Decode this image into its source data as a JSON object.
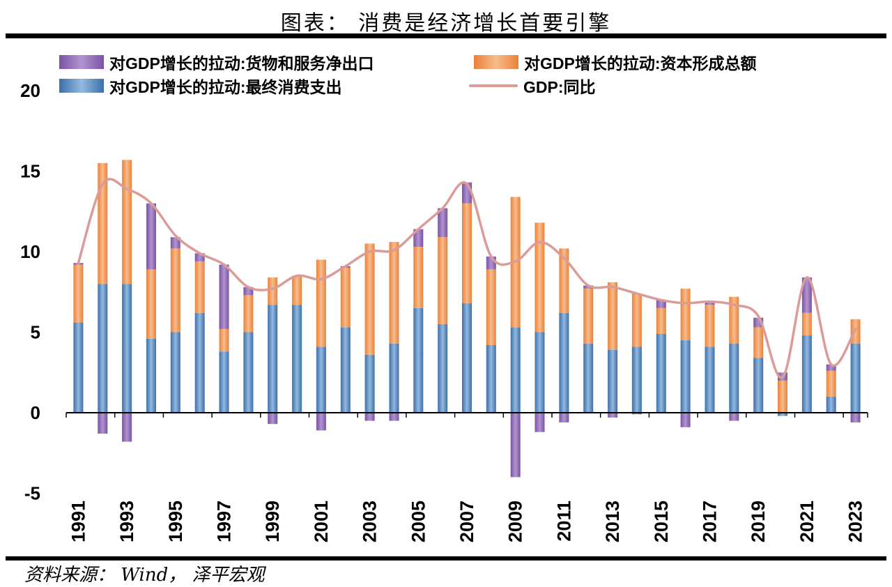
{
  "title": "图表： 消费是经济增长首要引擎",
  "source": "资料来源： Wind， 泽平宏观",
  "legend": {
    "items": [
      {
        "label": "对GDP增长的拉动:货物和服务净出口",
        "type": "bar",
        "color_dark": "#7A52A5",
        "color_light": "#B194CE"
      },
      {
        "label": "对GDP增长的拉动:资本形成总额",
        "type": "bar",
        "color_dark": "#E9813B",
        "color_light": "#F8BC8C"
      },
      {
        "label": "对GDP增长的拉动:最终消费支出",
        "type": "bar",
        "color_dark": "#3C6FAA",
        "color_light": "#93B9DE"
      },
      {
        "label": "GDP:同比",
        "type": "line",
        "color": "#DB9C98"
      }
    ]
  },
  "chart_data": {
    "type": "bar",
    "stacked": true,
    "title": "图表： 消费是经济增长首要引擎",
    "xlabel": "",
    "ylabel": "",
    "ylim": [
      -5,
      20
    ],
    "yticks": [
      20,
      15,
      10,
      5,
      0,
      -5
    ],
    "grid": false,
    "legend_position": "top-left",
    "x": [
      1991,
      1992,
      1993,
      1994,
      1995,
      1996,
      1997,
      1998,
      1999,
      2000,
      2001,
      2002,
      2003,
      2004,
      2005,
      2006,
      2007,
      2008,
      2009,
      2010,
      2011,
      2012,
      2013,
      2014,
      2015,
      2016,
      2017,
      2018,
      2019,
      2020,
      2021,
      2022,
      2023
    ],
    "xtick_labels": [
      "1991",
      "1993",
      "1995",
      "1997",
      "1999",
      "2001",
      "2003",
      "2005",
      "2007",
      "2009",
      "2011",
      "2013",
      "2015",
      "2017",
      "2019",
      "2021",
      "2023"
    ],
    "series": [
      {
        "name": "对GDP增长的拉动:最终消费支出",
        "color_dark": "#3C6FAA",
        "color_light": "#93B9DE",
        "values": [
          5.6,
          8.0,
          8.0,
          4.6,
          5.0,
          6.2,
          3.8,
          5.0,
          6.7,
          6.7,
          4.1,
          5.3,
          3.6,
          4.3,
          6.5,
          5.5,
          6.8,
          4.2,
          5.3,
          5.0,
          6.2,
          4.3,
          3.9,
          4.1,
          4.9,
          4.5,
          4.1,
          4.3,
          3.4,
          -0.2,
          4.8,
          1.0,
          4.3
        ]
      },
      {
        "name": "对GDP增长的拉动:资本形成总额",
        "color_dark": "#E9813B",
        "color_light": "#F8BC8C",
        "values": [
          3.6,
          7.5,
          7.7,
          4.3,
          5.2,
          3.2,
          1.4,
          2.3,
          1.7,
          1.8,
          5.4,
          3.7,
          6.9,
          6.3,
          3.8,
          5.4,
          6.2,
          4.7,
          8.1,
          6.8,
          4.0,
          3.4,
          4.2,
          3.3,
          1.6,
          3.2,
          2.6,
          2.9,
          1.9,
          2.0,
          1.4,
          1.6,
          1.5
        ]
      },
      {
        "name": "对GDP增长的拉动:货物和服务净出口",
        "color_dark": "#7A52A5",
        "color_light": "#B194CE",
        "values": [
          0.1,
          -1.3,
          -1.8,
          4.1,
          0.7,
          0.5,
          4.0,
          0.5,
          -0.7,
          0.0,
          -1.1,
          0.1,
          -0.5,
          -0.5,
          1.1,
          1.8,
          1.3,
          0.8,
          -4.0,
          -1.2,
          -0.6,
          0.2,
          -0.3,
          -0.1,
          0.5,
          -0.9,
          0.2,
          -0.5,
          0.6,
          0.5,
          2.2,
          0.4,
          -0.6
        ]
      }
    ],
    "line_series": {
      "name": "GDP:同比",
      "color": "#DB9C98",
      "values": [
        9.3,
        14.2,
        13.9,
        13.0,
        11.0,
        9.9,
        9.2,
        7.8,
        7.7,
        8.5,
        8.3,
        9.1,
        10.0,
        10.1,
        11.4,
        12.7,
        14.2,
        9.7,
        9.4,
        10.6,
        9.6,
        7.9,
        7.8,
        7.4,
        7.0,
        6.8,
        6.9,
        6.7,
        6.0,
        2.2,
        8.4,
        3.0,
        5.2
      ]
    }
  }
}
